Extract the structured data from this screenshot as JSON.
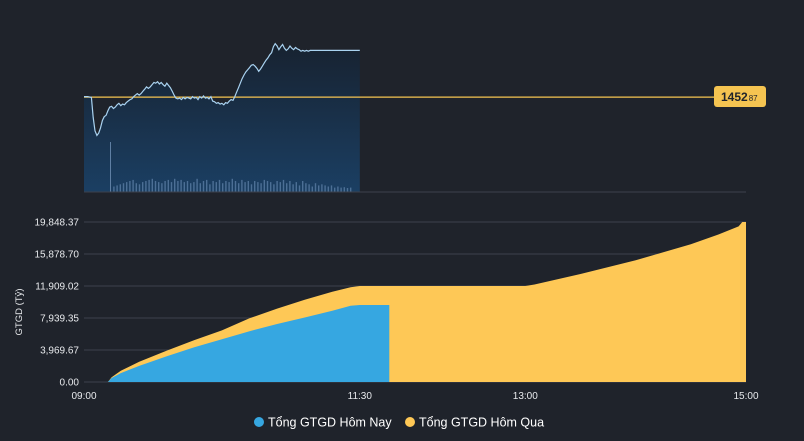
{
  "colors": {
    "background": "#1f232b",
    "index_line": "#a9d2f0",
    "reference_line": "#f5c451",
    "today": "#36a7e1",
    "yesterday": "#fec856",
    "grid": "#3d424c",
    "axis_text": "#e8eaed",
    "badge_text": "#1f232b"
  },
  "chart_data": [
    {
      "type": "line",
      "reference": {
        "value": 1452.87,
        "label_int": "1452",
        "label_dec": "87"
      },
      "ylim": [
        1446.5,
        1456.7
      ],
      "x_domain_minutes": [
        0,
        360
      ],
      "points": [
        [
          0,
          1452.9
        ],
        [
          2,
          1452.9
        ],
        [
          4,
          1452.85
        ],
        [
          5,
          1451.5
        ],
        [
          6,
          1450.6
        ],
        [
          7,
          1450.3
        ],
        [
          8,
          1450.45
        ],
        [
          9,
          1450.8
        ],
        [
          10,
          1451.3
        ],
        [
          11,
          1451.55
        ],
        [
          12,
          1451.65
        ],
        [
          13,
          1451.95
        ],
        [
          14,
          1452.2
        ],
        [
          15,
          1452.25
        ],
        [
          16,
          1452.1
        ],
        [
          17,
          1452.2
        ],
        [
          18,
          1452.35
        ],
        [
          19,
          1452.45
        ],
        [
          20,
          1452.3
        ],
        [
          21,
          1452.4
        ],
        [
          22,
          1452.35
        ],
        [
          23,
          1452.5
        ],
        [
          24,
          1452.6
        ],
        [
          25,
          1452.7
        ],
        [
          26,
          1452.75
        ],
        [
          27,
          1452.9
        ],
        [
          28,
          1453.0
        ],
        [
          29,
          1453.1
        ],
        [
          30,
          1453.0
        ],
        [
          31,
          1453.1
        ],
        [
          32,
          1453.25
        ],
        [
          33,
          1453.4
        ],
        [
          34,
          1453.55
        ],
        [
          35,
          1453.45
        ],
        [
          36,
          1453.55
        ],
        [
          37,
          1453.7
        ],
        [
          38,
          1453.85
        ],
        [
          39,
          1453.8
        ],
        [
          40,
          1453.9
        ],
        [
          41,
          1453.75
        ],
        [
          42,
          1453.85
        ],
        [
          43,
          1453.7
        ],
        [
          44,
          1453.6
        ],
        [
          45,
          1453.8
        ],
        [
          46,
          1453.65
        ],
        [
          47,
          1453.5
        ],
        [
          48,
          1453.25
        ],
        [
          49,
          1453.0
        ],
        [
          50,
          1452.8
        ],
        [
          51,
          1452.75
        ],
        [
          52,
          1452.8
        ],
        [
          53,
          1452.7
        ],
        [
          54,
          1452.85
        ],
        [
          55,
          1452.75
        ],
        [
          56,
          1452.85
        ],
        [
          57,
          1452.8
        ],
        [
          58,
          1452.75
        ],
        [
          59,
          1452.9
        ],
        [
          60,
          1452.8
        ],
        [
          61,
          1452.85
        ],
        [
          62,
          1452.7
        ],
        [
          63,
          1452.9
        ],
        [
          64,
          1452.8
        ],
        [
          65,
          1452.95
        ],
        [
          66,
          1452.8
        ],
        [
          67,
          1452.85
        ],
        [
          68,
          1452.75
        ],
        [
          69,
          1452.9
        ],
        [
          70,
          1452.6
        ],
        [
          71,
          1452.55
        ],
        [
          72,
          1452.45
        ],
        [
          73,
          1452.5
        ],
        [
          74,
          1452.4
        ],
        [
          75,
          1452.45
        ],
        [
          76,
          1452.35
        ],
        [
          77,
          1452.5
        ],
        [
          78,
          1452.45
        ],
        [
          79,
          1452.6
        ],
        [
          80,
          1452.7
        ],
        [
          81,
          1452.65
        ],
        [
          82,
          1452.9
        ],
        [
          83,
          1453.2
        ],
        [
          84,
          1453.5
        ],
        [
          85,
          1453.8
        ],
        [
          86,
          1454.1
        ],
        [
          87,
          1454.35
        ],
        [
          88,
          1454.55
        ],
        [
          89,
          1454.7
        ],
        [
          90,
          1454.85
        ],
        [
          91,
          1455.0
        ],
        [
          92,
          1455.05
        ],
        [
          93,
          1454.95
        ],
        [
          94,
          1454.8
        ],
        [
          95,
          1454.6
        ],
        [
          96,
          1454.75
        ],
        [
          97,
          1454.95
        ],
        [
          98,
          1455.15
        ],
        [
          99,
          1455.35
        ],
        [
          100,
          1455.5
        ],
        [
          101,
          1455.7
        ],
        [
          102,
          1455.85
        ],
        [
          103,
          1456.25
        ],
        [
          104,
          1456.45
        ],
        [
          105,
          1456.3
        ],
        [
          106,
          1456.05
        ],
        [
          107,
          1456.25
        ],
        [
          108,
          1456.4
        ],
        [
          109,
          1456.15
        ],
        [
          110,
          1456.0
        ],
        [
          111,
          1456.1
        ],
        [
          112,
          1456.3
        ],
        [
          113,
          1456.15
        ],
        [
          114,
          1456.05
        ],
        [
          115,
          1456.2
        ],
        [
          116,
          1456.1
        ],
        [
          117,
          1456.05
        ],
        [
          118,
          1455.95
        ],
        [
          119,
          1456.0
        ],
        [
          120,
          1455.95
        ],
        [
          121,
          1456.0
        ],
        [
          122,
          1455.95
        ],
        [
          123,
          1456.0
        ],
        [
          124,
          1456.0
        ],
        [
          150,
          1456.0
        ]
      ],
      "volume_bars": [
        1.0,
        0.25,
        0.3,
        0.35,
        0.4,
        0.45,
        0.5,
        0.55,
        0.4,
        0.35,
        0.45,
        0.5,
        0.55,
        0.6,
        0.5,
        0.45,
        0.4,
        0.5,
        0.55,
        0.45,
        0.6,
        0.5,
        0.55,
        0.45,
        0.5,
        0.4,
        0.45,
        0.6,
        0.4,
        0.5,
        0.55,
        0.35,
        0.5,
        0.45,
        0.55,
        0.4,
        0.5,
        0.45,
        0.6,
        0.5,
        0.4,
        0.55,
        0.45,
        0.5,
        0.35,
        0.5,
        0.45,
        0.4,
        0.55,
        0.5,
        0.45,
        0.35,
        0.5,
        0.45,
        0.55,
        0.4,
        0.5,
        0.35,
        0.45,
        0.3,
        0.5,
        0.4,
        0.35,
        0.25,
        0.4,
        0.3,
        0.35,
        0.3,
        0.25,
        0.3,
        0.2,
        0.25,
        0.2,
        0.22,
        0.18,
        0.2
      ]
    },
    {
      "type": "area",
      "ylabel": "GTGD (Tỷ)",
      "yticks": [
        0,
        3969.67,
        7939.35,
        11909.02,
        15878.7,
        19848.37
      ],
      "ytick_labels": [
        "0.00",
        "3,969.67",
        "7,939.35",
        "11,909.02",
        "15,878.70",
        "19,848.37"
      ],
      "ylim": [
        0,
        19848.37
      ],
      "x_domain_minutes": [
        0,
        360
      ],
      "xtick_labels": [
        {
          "minute": 0,
          "label": "09:00"
        },
        {
          "minute": 150,
          "label": "11:30"
        },
        {
          "minute": 240,
          "label": "13:00"
        },
        {
          "minute": 360,
          "label": "15:00"
        }
      ],
      "series": [
        {
          "name": "Tổng GTGD Hôm Nay",
          "values": [
            [
              13,
              0
            ],
            [
              15,
              500
            ],
            [
              20,
              1100
            ],
            [
              30,
              2000
            ],
            [
              45,
              3200
            ],
            [
              60,
              4300
            ],
            [
              75,
              5300
            ],
            [
              90,
              6300
            ],
            [
              105,
              7200
            ],
            [
              120,
              8000
            ],
            [
              135,
              8850
            ],
            [
              145,
              9450
            ],
            [
              150,
              9550
            ],
            [
              155,
              9550
            ],
            [
              165,
              9550
            ],
            [
              166,
              9550
            ]
          ]
        },
        {
          "name": "Tổng GTGD Hôm Qua",
          "values": [
            [
              13,
              0
            ],
            [
              15,
              600
            ],
            [
              20,
              1400
            ],
            [
              30,
              2500
            ],
            [
              45,
              3900
            ],
            [
              60,
              5200
            ],
            [
              75,
              6400
            ],
            [
              90,
              7900
            ],
            [
              105,
              9100
            ],
            [
              120,
              10200
            ],
            [
              135,
              11200
            ],
            [
              145,
              11750
            ],
            [
              150,
              11909
            ],
            [
              240,
              11909
            ],
            [
              245,
              12100
            ],
            [
              270,
              13400
            ],
            [
              300,
              15100
            ],
            [
              330,
              17100
            ],
            [
              345,
              18300
            ],
            [
              356,
              19300
            ],
            [
              358,
              19848
            ],
            [
              360,
              19848
            ]
          ]
        }
      ]
    }
  ],
  "legend": {
    "today_label": "Tổng GTGD Hôm Nay",
    "yesterday_label": "Tổng GTGD Hôm Qua"
  }
}
